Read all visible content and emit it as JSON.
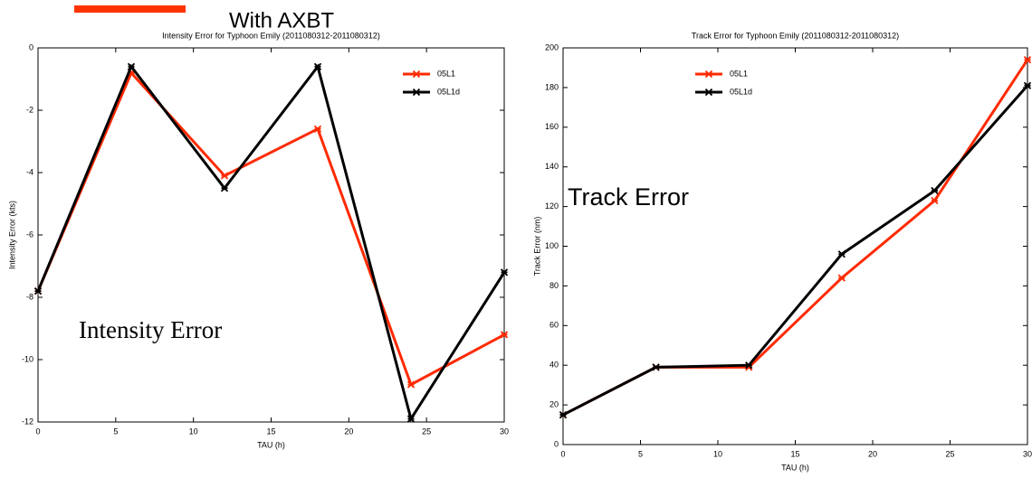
{
  "chart_data": [
    {
      "type": "line",
      "title": "Intensity Error for Typhoon Emily (2011080312-2011080312)",
      "xlabel": "TAU (h)",
      "ylabel": "Intensity Error (kts)",
      "x": [
        0,
        6,
        12,
        18,
        24,
        30
      ],
      "series": [
        {
          "name": "05L1",
          "color": "#ff2a00",
          "values": [
            -7.8,
            -0.8,
            -4.1,
            -2.6,
            -10.8,
            -9.2
          ]
        },
        {
          "name": "05L1d",
          "color": "#000000",
          "values": [
            -7.8,
            -0.6,
            -4.5,
            -0.6,
            -11.9,
            -7.2
          ]
        }
      ],
      "xlim": [
        0,
        30
      ],
      "xticks": [
        0,
        5,
        10,
        15,
        20,
        25,
        30
      ],
      "ylim": [
        -12,
        0
      ],
      "yticks": [
        -12,
        -10,
        -8,
        -6,
        -4,
        -2,
        0
      ],
      "legend": "upper right",
      "grid": false
    },
    {
      "type": "line",
      "title": "Track Error for Typhoon Emily (2011080312-2011080312)",
      "xlabel": "TAU (h)",
      "ylabel": "Track Error (nm)",
      "x": [
        0,
        6,
        12,
        18,
        24,
        30
      ],
      "series": [
        {
          "name": "05L1",
          "color": "#ff2a00",
          "values": [
            15,
            39,
            39,
            84,
            123,
            194
          ]
        },
        {
          "name": "05L1d",
          "color": "#000000",
          "values": [
            15,
            39,
            40,
            96,
            128,
            181
          ]
        }
      ],
      "xlim": [
        0,
        30
      ],
      "xticks": [
        0,
        5,
        10,
        15,
        20,
        25,
        30
      ],
      "ylim": [
        0,
        200
      ],
      "yticks": [
        0,
        20,
        40,
        60,
        80,
        100,
        120,
        140,
        160,
        180,
        200
      ],
      "legend": "upper left",
      "grid": false
    }
  ],
  "annotations": {
    "header": "With AXBT",
    "left_note": "Intensity Error",
    "right_note": "Track Error"
  }
}
